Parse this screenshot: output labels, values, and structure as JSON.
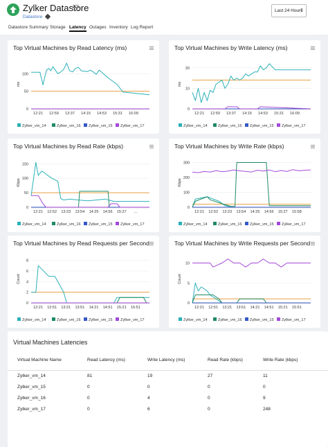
{
  "header": {
    "title": "Zylker Datastore",
    "breadcrumb": "Datastore",
    "time_range": "Last 24 Hours"
  },
  "tabs": [
    "Datastore Summary",
    "Storage",
    "Latency",
    "Outages",
    "Inventory",
    "Log Report"
  ],
  "active_tab": "Latency",
  "colors": {
    "vm14": "#2ab0b8",
    "vm16": "#1f8a63",
    "vm15": "#3558c7",
    "vm17": "#a34ad9",
    "threshold": "#e8a042",
    "panel_bg": "#ffffff",
    "page_bg": "#eef0f3"
  },
  "legend": [
    "Zylker_vm_14",
    "Zylker_vm_16",
    "Zylker_vm_15",
    "Zylker_vm_17"
  ],
  "chart_data": [
    {
      "id": "read_latency",
      "type": "line",
      "title": "Top Virtual Machines by Read Latency (ms)",
      "ylabel": "ms",
      "ylim": [
        0,
        140
      ],
      "yticks": [
        0,
        50,
        100
      ],
      "xticks": [
        "12:21",
        "12:59",
        "13:37",
        "14:15",
        "14:53",
        "15:31",
        "16:09"
      ],
      "x_range": [
        0,
        2
      ],
      "threshold": 50,
      "legend_visible_count": 4,
      "series": [
        {
          "name": "Zylker_vm_14",
          "x": [
            0,
            0.15,
            0.2,
            0.23,
            0.26,
            0.3,
            0.33,
            0.37,
            0.4,
            0.45,
            0.5,
            0.55,
            0.6,
            0.65,
            0.7,
            0.75,
            0.8,
            0.85,
            0.95,
            1,
            1.05,
            1.1,
            1.15,
            1.2,
            1.3,
            1.45,
            1.55,
            2
          ],
          "y": [
            104,
            104,
            68,
            90,
            110,
            115,
            108,
            120,
            112,
            100,
            105,
            112,
            130,
            108,
            105,
            115,
            118,
            108,
            106,
            110,
            105,
            98,
            110,
            103,
            88,
            70,
            48,
            40
          ]
        },
        {
          "name": "Zylker_vm_16",
          "x": [
            0,
            2
          ],
          "y": [
            0,
            0
          ]
        },
        {
          "name": "Zylker_vm_15",
          "x": [
            0,
            2
          ],
          "y": [
            0,
            0
          ]
        },
        {
          "name": "Zylker_vm_17",
          "x": [
            0,
            2
          ],
          "y": [
            0,
            0
          ]
        }
      ]
    },
    {
      "id": "write_latency",
      "type": "line",
      "title": "Top Virtual Machines by Write Latency (ms)",
      "ylabel": "ms",
      "ylim": [
        0,
        24
      ],
      "yticks": [
        0,
        10,
        20
      ],
      "xticks": [
        "12:21",
        "12:59",
        "13:37",
        "14:15",
        "14:53",
        "15:31",
        "16:09"
      ],
      "x_range": [
        0,
        2
      ],
      "threshold": 14,
      "legend_visible_count": 4,
      "series": [
        {
          "name": "Zylker_vm_14",
          "x": [
            0,
            0.05,
            0.1,
            0.15,
            0.2,
            0.25,
            0.3,
            0.35,
            0.4,
            0.45,
            0.5,
            0.55,
            0.6,
            0.65,
            0.7,
            0.75,
            0.8,
            0.85,
            0.9,
            0.95,
            1,
            1.05,
            1.1,
            1.15,
            1.2,
            1.25,
            1.3,
            1.4,
            2
          ],
          "y": [
            8,
            4,
            10,
            3,
            8,
            4,
            9,
            8,
            12,
            13,
            14,
            10,
            12,
            16,
            14,
            15,
            14,
            15,
            17,
            16,
            17,
            18,
            18,
            21,
            19,
            20,
            22,
            19,
            19
          ]
        },
        {
          "name": "Zylker_vm_16",
          "x": [
            0,
            2
          ],
          "y": [
            0,
            0
          ]
        },
        {
          "name": "Zylker_vm_15",
          "x": [
            0,
            2
          ],
          "y": [
            0,
            0
          ]
        },
        {
          "name": "Zylker_vm_17",
          "x": [
            0,
            0.55,
            0.6,
            0.75,
            0.8,
            1.1,
            1.15,
            2
          ],
          "y": [
            0,
            0,
            1,
            1,
            0,
            0,
            1,
            0
          ]
        }
      ]
    },
    {
      "id": "read_rate",
      "type": "line",
      "title": "Top Virtual Machines by Read Rate (kbps)",
      "ylabel": "Kbps",
      "ylim": [
        0,
        170
      ],
      "yticks": [
        0,
        50,
        100,
        150
      ],
      "xticks": [
        "12:21",
        "12:52",
        "13:23",
        "13:54",
        "14:25",
        "14:56",
        "15:27",
        "..."
      ],
      "x_range": [
        0,
        2
      ],
      "threshold": 50,
      "legend_visible_count": 4,
      "series": [
        {
          "name": "Zylker_vm_14",
          "x": [
            0,
            0.08,
            0.12,
            0.18,
            0.22,
            0.28,
            0.35,
            0.45,
            0.5,
            0.55,
            0.65,
            0.8,
            0.95,
            1.1,
            1.25,
            1.4,
            2
          ],
          "y": [
            40,
            155,
            110,
            125,
            120,
            110,
            100,
            90,
            30,
            25,
            28,
            25,
            22,
            25,
            28,
            20,
            20
          ]
        },
        {
          "name": "Zylker_vm_16",
          "x": [
            0,
            0.8,
            0.82,
            1.3,
            1.32,
            2
          ],
          "y": [
            0,
            0,
            55,
            55,
            0,
            0
          ]
        },
        {
          "name": "Zylker_vm_15",
          "x": [
            0,
            2
          ],
          "y": [
            0,
            0
          ]
        },
        {
          "name": "Zylker_vm_17",
          "x": [
            0,
            0.12,
            0.2,
            0.25,
            1.3,
            1.35,
            1.45,
            1.5,
            2
          ],
          "y": [
            40,
            40,
            12,
            0,
            0,
            12,
            12,
            0,
            0
          ]
        }
      ]
    },
    {
      "id": "write_rate",
      "type": "line",
      "title": "Top Virtual Machines by Write Rate (kbps)",
      "ylabel": "Kbps",
      "ylim": [
        0,
        330
      ],
      "yticks": [
        0,
        100,
        200,
        300
      ],
      "xticks": [
        "12:21",
        "12:52",
        "13:23",
        "13:54",
        "14:25",
        "14:56",
        "15:27",
        "15:58"
      ],
      "x_range": [
        0,
        2
      ],
      "threshold": 20,
      "legend_visible_count": 4,
      "series": [
        {
          "name": "Zylker_vm_14",
          "x": [
            0,
            0.05,
            0.25,
            0.45,
            0.55,
            0.7,
            2
          ],
          "y": [
            0,
            55,
            70,
            40,
            10,
            0,
            0
          ]
        },
        {
          "name": "Zylker_vm_16",
          "x": [
            0,
            0.05,
            0.25,
            0.3,
            0.45,
            0.65,
            0.72,
            0.75,
            1.25,
            1.3,
            2
          ],
          "y": [
            0,
            40,
            70,
            50,
            30,
            5,
            5,
            300,
            300,
            10,
            10
          ]
        },
        {
          "name": "Zylker_vm_15",
          "x": [
            0,
            2
          ],
          "y": [
            0,
            0
          ]
        },
        {
          "name": "Zylker_vm_17",
          "x": [
            0,
            0.1,
            0.2,
            0.3,
            0.4,
            0.5,
            0.6,
            0.7,
            0.8,
            0.9,
            1,
            1.1,
            1.2,
            1.3,
            1.4,
            1.5,
            1.6,
            1.7,
            1.8,
            1.9,
            2
          ],
          "y": [
            235,
            232,
            240,
            236,
            245,
            238,
            242,
            250,
            244,
            240,
            236,
            248,
            242,
            250,
            238,
            246,
            240,
            252,
            244,
            248,
            250
          ]
        }
      ]
    },
    {
      "id": "read_requests",
      "type": "line",
      "title": "Top Virtual Machines by Read Requests per Second",
      "ylabel": "Count",
      "ylim": [
        0,
        9
      ],
      "yticks": [
        0,
        2,
        4,
        6,
        8
      ],
      "xticks": [
        "12:21",
        "12:51",
        "13:21",
        "13:51",
        "14:21",
        "14:51",
        "15:21",
        "15:51"
      ],
      "x_range": [
        0,
        2
      ],
      "threshold": 2,
      "legend_visible_count": 4,
      "series": [
        {
          "name": "Zylker_vm_14",
          "x": [
            0,
            0.08,
            0.12,
            0.3,
            0.4,
            0.45,
            0.55,
            0.6,
            1.4,
            1.45,
            2
          ],
          "y": [
            2,
            2,
            7,
            5,
            5,
            4,
            2,
            0,
            0,
            1,
            1
          ]
        },
        {
          "name": "Zylker_vm_16",
          "x": [
            0,
            1.45,
            1.5,
            1.9,
            1.95,
            2
          ],
          "y": [
            0,
            0,
            1,
            1,
            0,
            0
          ]
        },
        {
          "name": "Zylker_vm_15",
          "x": [
            0,
            2
          ],
          "y": [
            0,
            0
          ]
        },
        {
          "name": "Zylker_vm_17",
          "x": [
            0,
            2
          ],
          "y": [
            0,
            0
          ]
        }
      ]
    },
    {
      "id": "write_requests",
      "type": "line",
      "title": "Top Virtual Machines by Write Requests per Second",
      "ylabel": "Count",
      "ylim": [
        0,
        12
      ],
      "yticks": [
        0,
        5,
        10
      ],
      "xticks": [
        "12:21",
        "12:51",
        "13:21",
        "13:51",
        "14:21",
        "14:51",
        "15:21",
        "15:51"
      ],
      "x_range": [
        0,
        2
      ],
      "threshold": 1,
      "legend_visible_count": 4,
      "series": [
        {
          "name": "Zylker_vm_14",
          "x": [
            0,
            0.05,
            0.1,
            0.15,
            0.25,
            0.3,
            0.4,
            0.5,
            2
          ],
          "y": [
            0,
            5,
            3,
            4,
            3,
            2,
            1,
            0,
            0
          ]
        },
        {
          "name": "Zylker_vm_16",
          "x": [
            0,
            0.05,
            0.35,
            0.45,
            0.5,
            0.75,
            0.8,
            1.2,
            1.25,
            2
          ],
          "y": [
            0,
            2,
            2,
            1,
            0,
            0,
            1,
            1,
            0,
            0
          ]
        },
        {
          "name": "Zylker_vm_15",
          "x": [
            0,
            2
          ],
          "y": [
            0,
            0
          ]
        },
        {
          "name": "Zylker_vm_17",
          "x": [
            0,
            0.3,
            0.35,
            0.5,
            0.6,
            0.7,
            0.8,
            0.9,
            1,
            1.1,
            1.2,
            1.3,
            1.4,
            1.5,
            1.6,
            2
          ],
          "y": [
            10,
            10,
            9,
            10,
            11,
            10,
            10,
            9,
            10,
            10,
            11,
            10,
            10,
            9,
            10,
            10
          ]
        }
      ]
    }
  ],
  "table": {
    "title": "Virtual Machines Latencies",
    "headers": [
      "Virtual Machine Name",
      "Read Latency (ms)",
      "Write Latency (ms)",
      "Read Rate (kbps)",
      "Write Rate (kbps)"
    ],
    "rows": [
      [
        "Zylker_vm_14",
        "81",
        "19",
        "27",
        "11"
      ],
      [
        "Zylker_vm_15",
        "0",
        "0",
        "0",
        "0"
      ],
      [
        "Zylker_vm_16",
        "0",
        "4",
        "0",
        "9"
      ],
      [
        "Zylker_vm_17",
        "0",
        "6",
        "0",
        "248"
      ]
    ]
  }
}
